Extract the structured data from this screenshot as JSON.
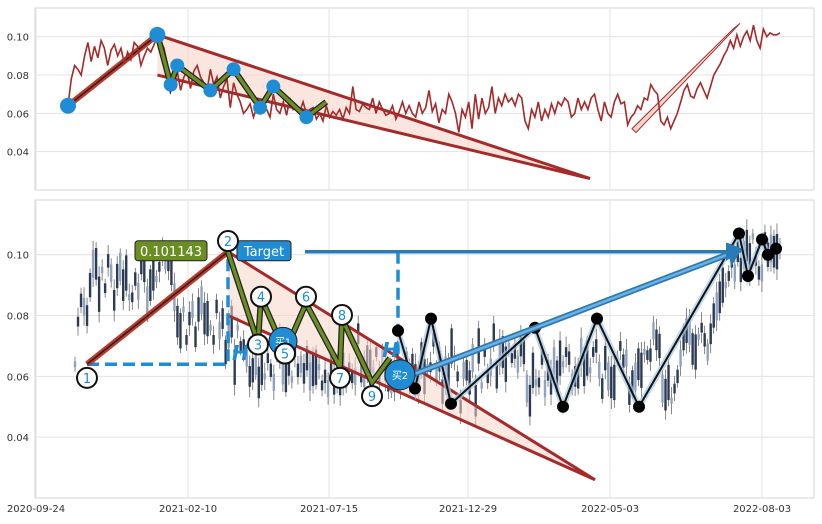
{
  "chart_data": [
    {
      "type": "line",
      "panel": "top",
      "ylim": [
        0.02,
        0.115
      ],
      "yticks": [
        0.04,
        0.06,
        0.08,
        0.1
      ],
      "ytick_labels": [
        "0.04",
        "0.06",
        "0.08",
        "0.10"
      ],
      "grid": true,
      "colors": {
        "price_line": "#a52a2a",
        "pattern_line": "#6b8e23",
        "pivot_marker": "#1f8dd6",
        "trend_line": "#c0392b",
        "wedge_fill": "#f6d5c8"
      },
      "series": [
        {
          "values": [
            0.064,
            0.078,
            0.085,
            0.083,
            0.08,
            0.09,
            0.097,
            0.087,
            0.095,
            0.089,
            0.098,
            0.094,
            0.085,
            0.093,
            0.096,
            0.09,
            0.094,
            0.086,
            0.092,
            0.088,
            0.097,
            0.095,
            0.085,
            0.09,
            0.094,
            0.092,
            0.096,
            0.101,
            0.098,
            0.094,
            0.086,
            0.078,
            0.075,
            0.082,
            0.072,
            0.079,
            0.082,
            0.073,
            0.082,
            0.085,
            0.079,
            0.076,
            0.072,
            0.083,
            0.075,
            0.079,
            0.068,
            0.074,
            0.078,
            0.063,
            0.076,
            0.07,
            0.066,
            0.06,
            0.062,
            0.065,
            0.058,
            0.063,
            0.06,
            0.066,
            0.062,
            0.058,
            0.07,
            0.062,
            0.06,
            0.066,
            0.059,
            0.068,
            0.062,
            0.064,
            0.061,
            0.066,
            0.06,
            0.062,
            0.063,
            0.057,
            0.06,
            0.056,
            0.064,
            0.058,
            0.061,
            0.059,
            0.062,
            0.057,
            0.063,
            0.06,
            0.074,
            0.062,
            0.061,
            0.065,
            0.063,
            0.062,
            0.068,
            0.06,
            0.066,
            0.062,
            0.059,
            0.06,
            0.064,
            0.057,
            0.061,
            0.066,
            0.06,
            0.064,
            0.06,
            0.058,
            0.066,
            0.06,
            0.063,
            0.072,
            0.061,
            0.065,
            0.055,
            0.062,
            0.06,
            0.07,
            0.066,
            0.06,
            0.05,
            0.062,
            0.058,
            0.066,
            0.052,
            0.07,
            0.057,
            0.068,
            0.06,
            0.063,
            0.074,
            0.06,
            0.068,
            0.064,
            0.07,
            0.066,
            0.068,
            0.064,
            0.07,
            0.068,
            0.056,
            0.052,
            0.062,
            0.058,
            0.066,
            0.056,
            0.062,
            0.058,
            0.065,
            0.06,
            0.066,
            0.064,
            0.068,
            0.066,
            0.058,
            0.06,
            0.068,
            0.062,
            0.066,
            0.062,
            0.068,
            0.07,
            0.062,
            0.056,
            0.066,
            0.06,
            0.058,
            0.066,
            0.07,
            0.065,
            0.066,
            0.054,
            0.058,
            0.06,
            0.064,
            0.062,
            0.068,
            0.067,
            0.075,
            0.072,
            0.07,
            0.056,
            0.054,
            0.058,
            0.052,
            0.056,
            0.06,
            0.066,
            0.072,
            0.075,
            0.069,
            0.068,
            0.073,
            0.076,
            0.072,
            0.068,
            0.074,
            0.08,
            0.083,
            0.086,
            0.09,
            0.093,
            0.098,
            0.094,
            0.101,
            0.095,
            0.1,
            0.103,
            0.098,
            0.106,
            0.098,
            0.094,
            0.104,
            0.1,
            0.102,
            0.101,
            0.101,
            0.102
          ]
        }
      ],
      "pivots": [
        {
          "x": 0,
          "y": 0.064
        },
        {
          "x": 27,
          "y": 0.101
        },
        {
          "x": 33,
          "y": 0.085
        },
        {
          "x": 31,
          "y": 0.075
        },
        {
          "x": 43,
          "y": 0.072
        },
        {
          "x": 50,
          "y": 0.083
        },
        {
          "x": 58,
          "y": 0.063
        },
        {
          "x": 62,
          "y": 0.074
        },
        {
          "x": 72,
          "y": 0.058
        }
      ]
    },
    {
      "type": "candlestick",
      "panel": "bottom",
      "x_ticks": [
        "2020-09-24",
        "2021-02-10",
        "2021-07-15",
        "2021-12-29",
        "2022-05-03",
        "2022-08-03"
      ],
      "ylim": [
        0.02,
        0.118
      ],
      "yticks": [
        0.04,
        0.06,
        0.08,
        0.1
      ],
      "ytick_labels": [
        "0.04",
        "0.06",
        "0.08",
        "0.10"
      ],
      "grid": true,
      "pattern_points": [
        {
          "label": "1",
          "x": "2020-11-20",
          "y": 0.064
        },
        {
          "label": "2",
          "x": "2021-04-10",
          "y": 0.101
        },
        {
          "label": "3",
          "x": "2021-05-18",
          "y": 0.071
        },
        {
          "label": "4",
          "x": "2021-05-25",
          "y": 0.086
        },
        {
          "label": "5",
          "x": "2021-06-20",
          "y": 0.068
        },
        {
          "label": "6",
          "x": "2021-07-10",
          "y": 0.084
        },
        {
          "label": "7",
          "x": "2021-08-01",
          "y": 0.063
        },
        {
          "label": "8",
          "x": "2021-08-05",
          "y": 0.079
        },
        {
          "label": "9",
          "x": "2021-09-10",
          "y": 0.058
        }
      ],
      "post_swings": [
        0.075,
        0.056,
        0.079,
        0.051,
        0.076,
        0.05,
        0.079,
        0.05,
        0.107,
        0.093,
        0.105,
        0.1,
        0.102
      ],
      "annotations": {
        "price_label": "0.101143",
        "target_label": "Target",
        "buy1_label": "买1",
        "buy2_label": "买2",
        "height_left": "H",
        "height_right": "H"
      },
      "colors": {
        "label_bg": "#6b8e23",
        "target_bg": "#1f8dd6",
        "target_arrow": "#2a7ab5",
        "dashed": "#1f8dd6",
        "up_candle": "#8fa3c0",
        "down_candle": "#2b3a55"
      }
    }
  ]
}
